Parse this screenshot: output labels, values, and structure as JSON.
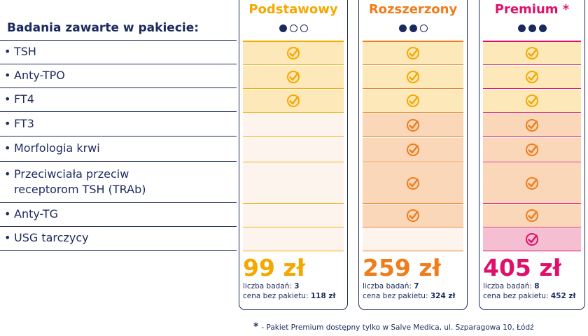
{
  "header": {
    "label": "Badania zawarte w pakiecie:"
  },
  "tests": [
    "TSH",
    "Anty-TPO",
    "FT4",
    "FT3",
    "Morfologia krwi",
    "Przeciwciała przeciw receptorom TSH (TRAb)",
    "Anty-TG",
    "USG tarczycy"
  ],
  "tests_display": [
    [
      "TSH"
    ],
    [
      "Anty-TPO"
    ],
    [
      "FT4"
    ],
    [
      "FT3"
    ],
    [
      "Morfologia krwi"
    ],
    [
      "Przeciwciała przeciw",
      "receptorom TSH (TRAb)"
    ],
    [
      "Anty-TG"
    ],
    [
      "USG tarczycy"
    ]
  ],
  "packages": [
    {
      "name": "Podstawowy",
      "level": 1,
      "price": "99 zł",
      "count_label": "liczba badań:",
      "count": "3",
      "noprice_label": "cena bez pakietu:",
      "noprice": "118 zł",
      "included": [
        true,
        true,
        true,
        false,
        false,
        false,
        false,
        false
      ],
      "accent": "#f5a800"
    },
    {
      "name": "Rozszerzony",
      "level": 2,
      "price": "259 zł",
      "count_label": "liczba badań:",
      "count": "7",
      "noprice_label": "cena bez pakietu:",
      "noprice": "324 zł",
      "included": [
        true,
        true,
        true,
        true,
        true,
        true,
        true,
        false
      ],
      "accent": "#f07c1a"
    },
    {
      "name": "Premium *",
      "level": 3,
      "price": "405 zł",
      "count_label": "liczba badań:",
      "count": "8",
      "noprice_label": "cena bez pakietu:",
      "noprice": "452 zł",
      "included": [
        true,
        true,
        true,
        true,
        true,
        true,
        true,
        true
      ],
      "accent": "#e0106a"
    }
  ],
  "colors": {
    "navy": "#1b2a5e",
    "yellow_cell": "#fce8b8",
    "orange_cell": "#f9d7b8",
    "pink_cell": "#f6bfd1",
    "empty_cell": "#fdf4ee"
  },
  "footnote": {
    "star": "*",
    "text": "- Pakiet Premium dostępny tylko w Salve Medica, ul. Szparagowa 10, Łódź"
  }
}
